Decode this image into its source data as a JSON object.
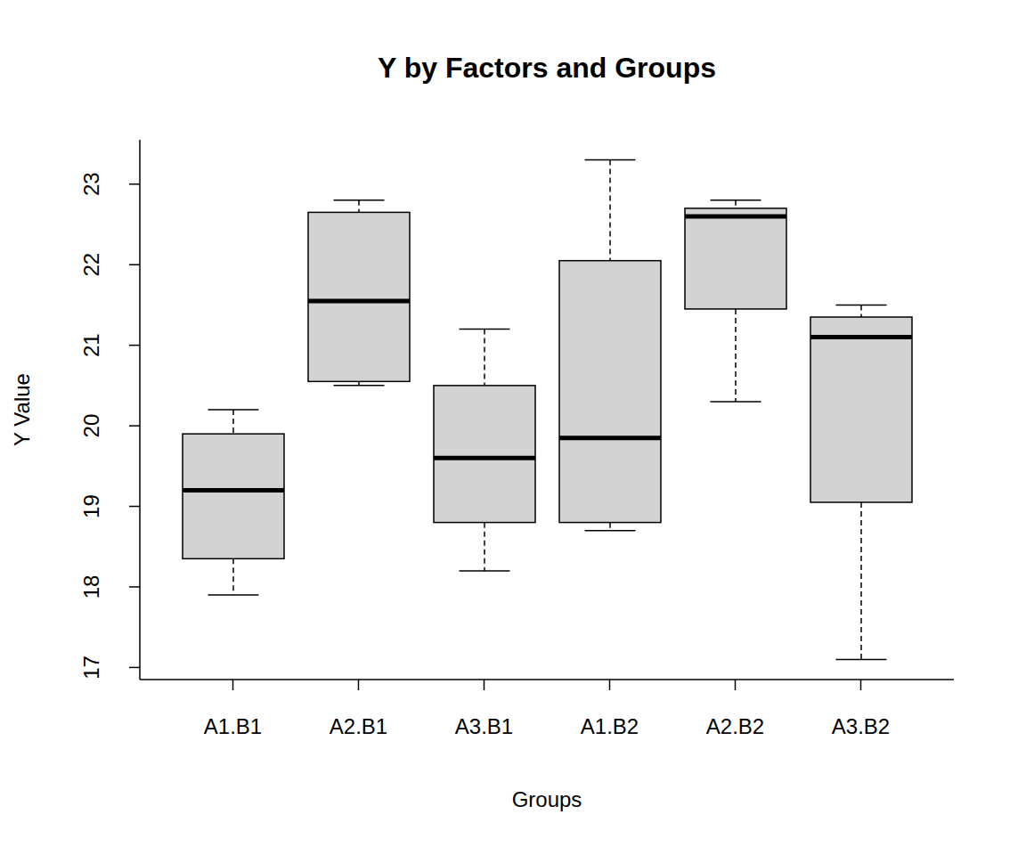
{
  "chart_data": {
    "type": "box",
    "title": "Y by Factors and Groups",
    "x_label": "Groups",
    "y_label": "Y Value",
    "categories": [
      "A1.B1",
      "A2.B1",
      "A3.B1",
      "A1.B2",
      "A2.B2",
      "A3.B2"
    ],
    "whisker_low": [
      17.9,
      20.5,
      18.2,
      18.7,
      20.3,
      17.1
    ],
    "q1": [
      18.35,
      20.55,
      18.8,
      18.8,
      21.45,
      19.05
    ],
    "median": [
      19.2,
      21.55,
      19.6,
      19.85,
      22.6,
      21.1
    ],
    "q3": [
      19.9,
      22.65,
      20.5,
      22.05,
      22.7,
      21.35
    ],
    "whisker_high": [
      20.2,
      22.8,
      21.2,
      23.3,
      22.8,
      21.5
    ],
    "color": "#d3d3d3",
    "ylim": [
      16.85,
      23.55
    ],
    "yticks": [
      17,
      18,
      19,
      20,
      21,
      22,
      23
    ],
    "grid": false
  }
}
